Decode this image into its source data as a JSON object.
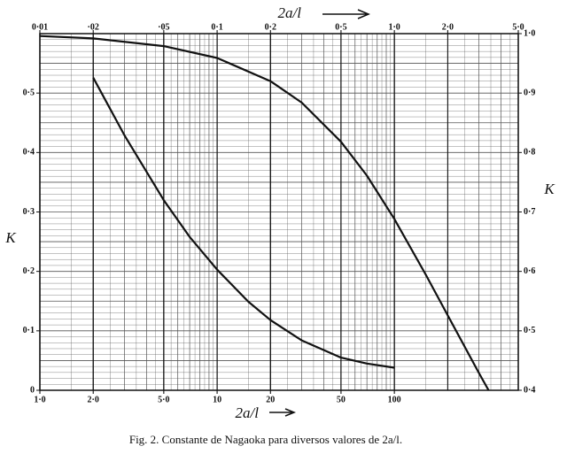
{
  "chart_data": {
    "type": "line",
    "x2_label": "2a/l",
    "x_label": "2a/l",
    "y_label": "K",
    "y2_label": "K",
    "caption": "Fig. 2. Constante de Nagaoka para diversos valores de 2a/l.",
    "xscale": "log",
    "grid": true,
    "color": "#111111",
    "xlim": [
      1,
      500
    ],
    "xticks": [
      {
        "value": 1,
        "label": "1·0"
      },
      {
        "value": 2,
        "label": "2·0"
      },
      {
        "value": 5,
        "label": "5·0"
      },
      10,
      20,
      50,
      100
    ],
    "x2lim": [
      0.01,
      5
    ],
    "x2ticks": [
      {
        "value": 0.01,
        "label": "0·01"
      },
      {
        "value": 0.02,
        "label": "·02"
      },
      {
        "value": 0.05,
        "label": "·05"
      },
      {
        "value": 0.1,
        "label": "0·1"
      },
      {
        "value": 0.2,
        "label": "0·2"
      },
      {
        "value": 0.5,
        "label": "0·5"
      },
      {
        "value": 1,
        "label": "1·0"
      },
      {
        "value": 2,
        "label": "2·0"
      },
      {
        "value": 5,
        "label": "5·0"
      }
    ],
    "ylim": [
      0,
      0.6
    ],
    "yticks": [
      0,
      {
        "value": 0.1,
        "label": "0·1"
      },
      {
        "value": 0.2,
        "label": "0·2"
      },
      {
        "value": 0.3,
        "label": "0·3"
      },
      {
        "value": 0.4,
        "label": "0·4"
      },
      {
        "value": 0.5,
        "label": "0·5"
      }
    ],
    "y2lim": [
      0.4,
      1
    ],
    "y2ticks": [
      {
        "value": 0.4,
        "label": "0·4"
      },
      {
        "value": 0.5,
        "label": "0·5"
      },
      {
        "value": 0.6,
        "label": "0·6"
      },
      {
        "value": 0.7,
        "label": "0·7"
      },
      {
        "value": 0.8,
        "label": "0·8"
      },
      {
        "value": 0.9,
        "label": "0·9"
      },
      {
        "value": 1,
        "label": "1·0"
      }
    ],
    "series": [
      {
        "axis": "y2",
        "x_axis": "x2",
        "x": [
          0.01,
          0.02,
          0.05,
          0.1,
          0.2,
          0.3,
          0.5,
          0.7,
          1,
          1.5,
          2,
          3,
          3.4
        ],
        "values": [
          0.996,
          0.992,
          0.979,
          0.959,
          0.92,
          0.884,
          0.818,
          0.761,
          0.688,
          0.595,
          0.526,
          0.429,
          0.4
        ]
      },
      {
        "x": [
          2,
          3,
          5,
          7,
          10,
          15,
          20,
          30,
          50,
          70,
          100
        ],
        "values": [
          0.526,
          0.429,
          0.32,
          0.258,
          0.203,
          0.149,
          0.118,
          0.084,
          0.055,
          0.045,
          0.038
        ]
      }
    ]
  }
}
